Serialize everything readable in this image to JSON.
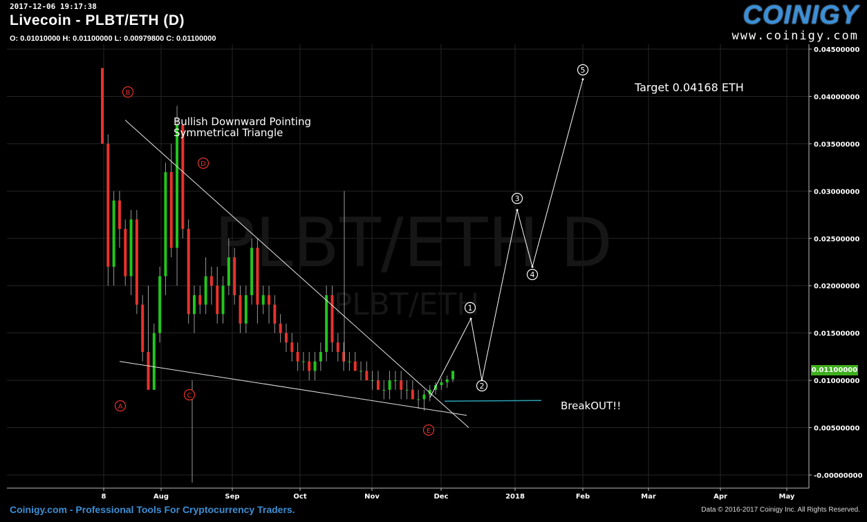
{
  "header": {
    "timestamp": "2017-12-06 19:17:38",
    "title": "Livecoin - PLBT/ETH (D)",
    "ohlc": "O: 0.01010000 H: 0.01100000 L: 0.00979800 C: 0.01100000"
  },
  "logo": {
    "word": "COINIGY",
    "url": "www.coinigy.com"
  },
  "footer": {
    "left": "Coinigy.com - Professional Tools For Cryptocurrency Traders.",
    "right": "Data © 2016-2017 Coinigy Inc. All Rights Reserved."
  },
  "watermark": {
    "big": "PLBT/ETH D",
    "small": "PLBT/ETH"
  },
  "current_price_label": "0.01100000",
  "colors": {
    "up": "#22c51d",
    "down": "#e8322c",
    "grid": "#262626",
    "accent": "#3d8fd6",
    "breakout_line": "#2aa3b8",
    "badge": "#3fae1e"
  },
  "chart_data": {
    "type": "candlestick",
    "x_tick_labels": [
      "8",
      "Aug",
      "Sep",
      "Oct",
      "Nov",
      "Dec",
      "2018",
      "Feb",
      "Mar",
      "Apr",
      "May"
    ],
    "x_ticks_days_from_jul1": [
      7,
      31,
      62,
      92,
      123,
      153,
      184,
      215,
      243,
      274,
      304
    ],
    "ylim": [
      -0.001,
      0.046
    ],
    "y_tick_labels": [
      "0.04500000",
      "0.04000000",
      "0.03500000",
      "0.03000000",
      "0.02500000",
      "0.02000000",
      "0.01500000",
      "0.01000000",
      "0.00500000",
      "-0.00000000"
    ],
    "y_ticks": [
      0.045,
      0.04,
      0.035,
      0.03,
      0.025,
      0.02,
      0.015,
      0.01,
      0.005,
      0.0
    ],
    "grid": true,
    "candles": [
      [
        0.043,
        0.043,
        0.035,
        0.035
      ],
      [
        0.035,
        0.036,
        0.02,
        0.022
      ],
      [
        0.022,
        0.03,
        0.02,
        0.029
      ],
      [
        0.029,
        0.03,
        0.024,
        0.026
      ],
      [
        0.026,
        0.027,
        0.02,
        0.021
      ],
      [
        0.021,
        0.028,
        0.019,
        0.027
      ],
      [
        0.027,
        0.028,
        0.017,
        0.018
      ],
      [
        0.018,
        0.019,
        0.012,
        0.013
      ],
      [
        0.013,
        0.02,
        0.009,
        0.009
      ],
      [
        0.009,
        0.016,
        0.009,
        0.015
      ],
      [
        0.015,
        0.022,
        0.014,
        0.021
      ],
      [
        0.021,
        0.033,
        0.019,
        0.032
      ],
      [
        0.032,
        0.035,
        0.023,
        0.024
      ],
      [
        0.024,
        0.039,
        0.02,
        0.037
      ],
      [
        0.037,
        0.037,
        0.025,
        0.026
      ],
      [
        0.026,
        0.027,
        0.016,
        0.017
      ],
      [
        0.017,
        0.02,
        0.015,
        0.019
      ],
      [
        0.019,
        0.02,
        0.017,
        0.018
      ],
      [
        0.018,
        0.023,
        0.017,
        0.021
      ],
      [
        0.021,
        0.022,
        0.018,
        0.02
      ],
      [
        0.02,
        0.022,
        0.016,
        0.017
      ],
      [
        0.017,
        0.021,
        0.016,
        0.02
      ],
      [
        0.02,
        0.025,
        0.019,
        0.023
      ],
      [
        0.023,
        0.024,
        0.018,
        0.019
      ],
      [
        0.019,
        0.02,
        0.015,
        0.016
      ],
      [
        0.016,
        0.02,
        0.015,
        0.019
      ],
      [
        0.019,
        0.025,
        0.018,
        0.024
      ],
      [
        0.024,
        0.025,
        0.016,
        0.018
      ],
      [
        0.018,
        0.02,
        0.017,
        0.019
      ],
      [
        0.019,
        0.02,
        0.016,
        0.018
      ],
      [
        0.018,
        0.019,
        0.015,
        0.016
      ],
      [
        0.016,
        0.017,
        0.014,
        0.015
      ],
      [
        0.015,
        0.016,
        0.013,
        0.014
      ],
      [
        0.014,
        0.015,
        0.012,
        0.013
      ],
      [
        0.013,
        0.014,
        0.011,
        0.012
      ],
      [
        0.012,
        0.013,
        0.011,
        0.012
      ],
      [
        0.012,
        0.013,
        0.01,
        0.011
      ],
      [
        0.011,
        0.013,
        0.01,
        0.012
      ],
      [
        0.012,
        0.014,
        0.011,
        0.013
      ],
      [
        0.013,
        0.02,
        0.012,
        0.019
      ],
      [
        0.019,
        0.02,
        0.013,
        0.014
      ],
      [
        0.014,
        0.015,
        0.012,
        0.013
      ],
      [
        0.013,
        0.014,
        0.011,
        0.012
      ],
      [
        0.012,
        0.013,
        0.011,
        0.012
      ],
      [
        0.012,
        0.013,
        0.011,
        0.011
      ],
      [
        0.011,
        0.012,
        0.01,
        0.011
      ],
      [
        0.011,
        0.012,
        0.01,
        0.01
      ],
      [
        0.01,
        0.011,
        0.009,
        0.01
      ],
      [
        0.01,
        0.011,
        0.009,
        0.009
      ],
      [
        0.009,
        0.01,
        0.008,
        0.009
      ],
      [
        0.009,
        0.011,
        0.008,
        0.01
      ],
      [
        0.01,
        0.011,
        0.009,
        0.01
      ],
      [
        0.01,
        0.011,
        0.008,
        0.009
      ],
      [
        0.009,
        0.01,
        0.008,
        0.009
      ],
      [
        0.009,
        0.01,
        0.008,
        0.008
      ],
      [
        0.008,
        0.009,
        0.007,
        0.008
      ],
      [
        0.008,
        0.009,
        0.0068,
        0.0085
      ],
      [
        0.0085,
        0.0095,
        0.0078,
        0.009
      ],
      [
        0.009,
        0.0098,
        0.0085,
        0.0095
      ],
      [
        0.0095,
        0.0102,
        0.009,
        0.0098
      ],
      [
        0.0098,
        0.0105,
        0.0092,
        0.0101
      ],
      [
        0.0101,
        0.011,
        0.0098,
        0.011
      ]
    ],
    "annotations": [
      {
        "text": "Bullish Downward Pointing",
        "type": "label"
      },
      {
        "text": "Symmetrical Triangle",
        "type": "label"
      },
      {
        "text": "Target 0.04168 ETH",
        "type": "label"
      },
      {
        "text": "BreakOUT!!",
        "type": "label"
      }
    ],
    "corrective_wave_labels": [
      "A",
      "B",
      "C",
      "D",
      "E"
    ],
    "impulse_wave_labels": [
      "1",
      "2",
      "3",
      "4",
      "5"
    ],
    "impulse_projection_prices": [
      0.0082,
      0.0165,
      0.01,
      0.028,
      0.022,
      0.0418
    ],
    "trendline_upper_prices": [
      0.0375,
      0.005
    ],
    "trendline_lower_prices": [
      0.012,
      0.0063
    ],
    "breakout_level": 0.0078
  }
}
